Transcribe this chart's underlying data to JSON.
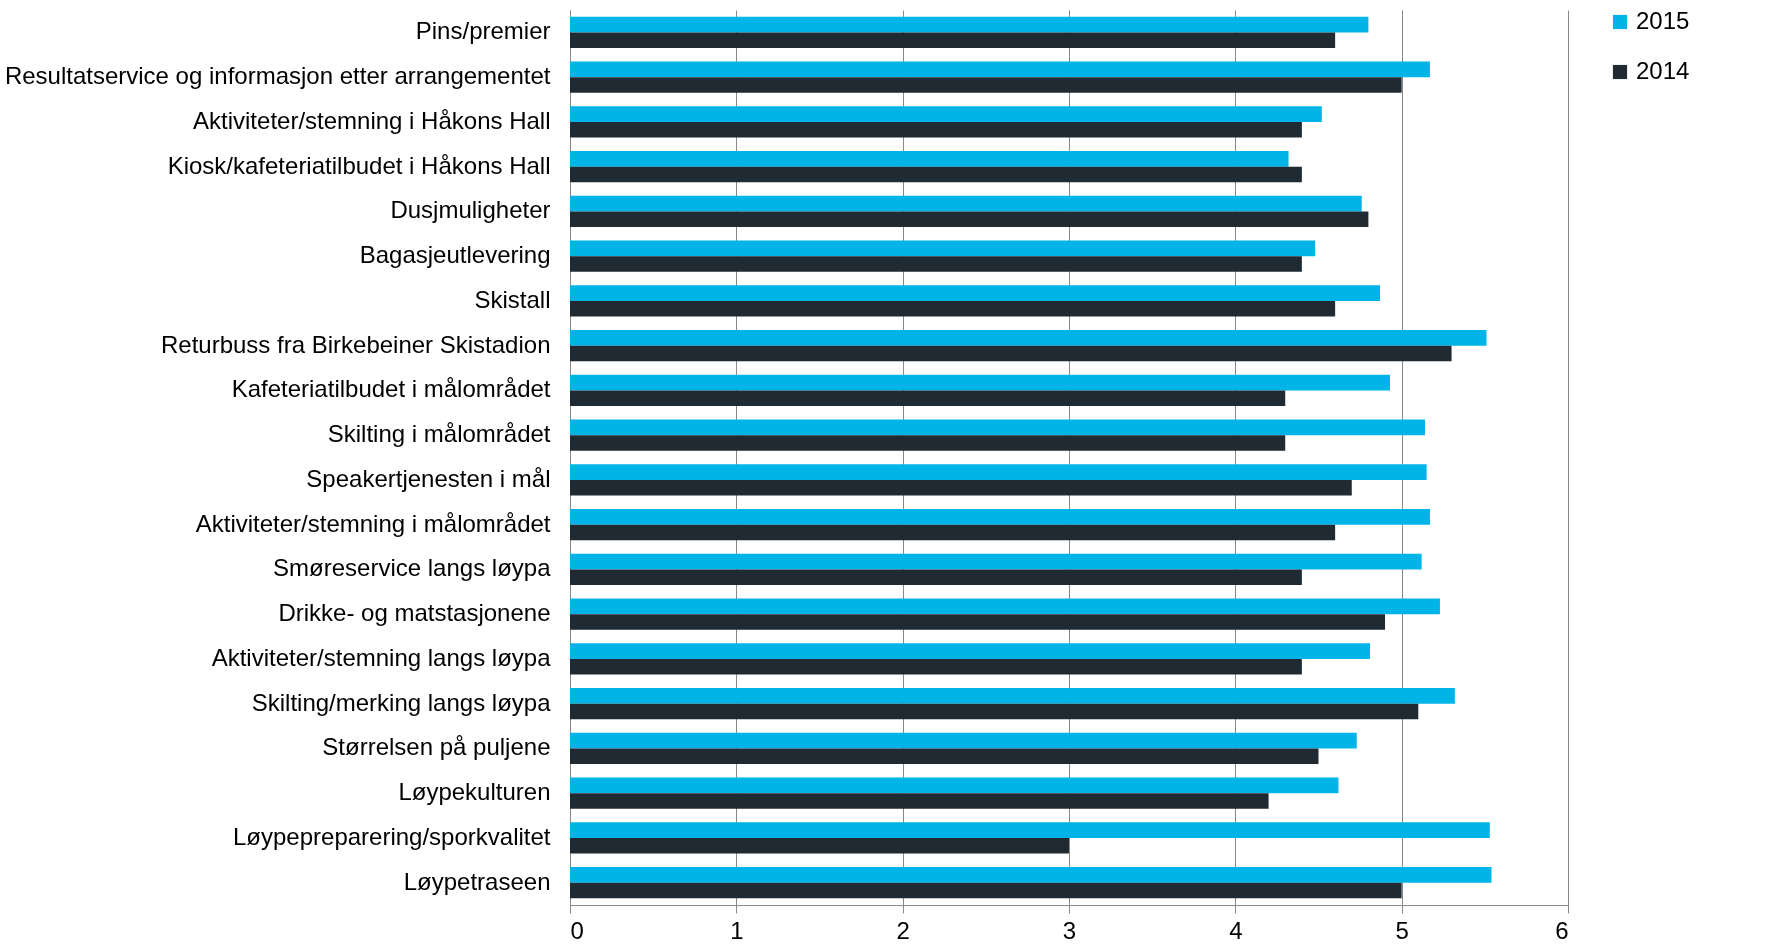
{
  "chart_data": {
    "type": "bar",
    "orientation": "horizontal",
    "categories": [
      "Pins/premier",
      "Resultatservice og informasjon etter arrangementet",
      "Aktiviteter/stemning i Håkons Hall",
      "Kiosk/kafeteriatilbudet i Håkons Hall",
      "Dusjmuligheter",
      "Bagasjeutlevering",
      "Skistall",
      "Returbuss fra Birkebeiner Skistadion",
      "Kafeteriatilbudet i målområdet",
      "Skilting i målområdet",
      "Speakertjenesten i mål",
      "Aktiviteter/stemning i målområdet",
      "Smøreservice langs løypa",
      "Drikke- og matstasjonene",
      "Aktiviteter/stemning langs løypa",
      "Skilting/merking langs løypa",
      "Størrelsen på puljene",
      "Løypekulturen",
      "Løypepreparering/sporkvalitet",
      "Løypetraseen"
    ],
    "series": [
      {
        "name": "2015",
        "color": "#00b4e8",
        "values": [
          4.8,
          5.17,
          4.52,
          4.32,
          4.76,
          4.48,
          4.87,
          5.51,
          4.93,
          5.14,
          5.15,
          5.17,
          5.12,
          5.23,
          4.81,
          5.32,
          4.73,
          4.62,
          5.53,
          5.54
        ]
      },
      {
        "name": "2014",
        "color": "#1f2a33",
        "values": [
          4.6,
          5.0,
          4.4,
          4.4,
          4.8,
          4.4,
          4.6,
          5.3,
          4.3,
          4.3,
          4.7,
          4.6,
          4.4,
          4.9,
          4.4,
          5.1,
          4.5,
          4.2,
          3.0,
          5.0
        ]
      }
    ],
    "xlim": [
      0,
      6
    ],
    "xticks": [
      0,
      1,
      2,
      3,
      4,
      5,
      6
    ],
    "grid": "x",
    "legend": "right"
  }
}
